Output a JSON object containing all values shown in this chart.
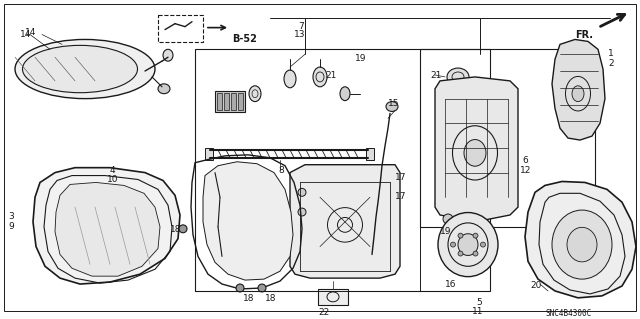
{
  "diagram_code": "SNC4B4300C",
  "bg_color": "#ffffff",
  "line_color": "#1a1a1a",
  "fig_width": 6.4,
  "fig_height": 3.19,
  "dpi": 100,
  "label_fontsize": 6.5
}
